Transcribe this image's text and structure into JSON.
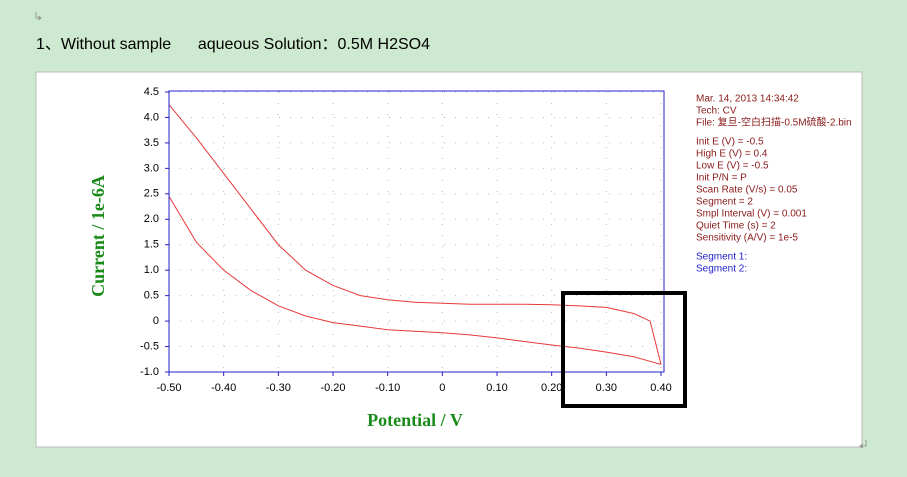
{
  "chart_data": {
    "type": "line",
    "title": "1、Without sample      aqueous Solution：0.5M H2SO4",
    "x_label": "Potential / V",
    "y_label": "Current / 1e-6A",
    "annotations": [
      "Mar. 14, 2013    14:34:42",
      "Tech: CV",
      "File: 复旦-空白扫描-0.5M硫酸-2.bin",
      "Init E (V) = -0.5",
      "High E (V) = 0.4",
      "Low E (V) = -0.5",
      "Init P/N = P",
      "Scan Rate (V/s) = 0.05",
      "Segment = 2",
      "Smpl Interval (V) = 0.001",
      "Quiet Time (s) = 2",
      "Sensitivity (A/V) = 1e-5"
    ],
    "xlim": [
      -0.5,
      0.4
    ],
    "ylim": [
      -1.0,
      4.5
    ],
    "xticks": [
      {
        "value": -0.5,
        "label": "-0.50"
      },
      {
        "value": -0.4,
        "label": "-0.40"
      },
      {
        "value": -0.3,
        "label": "-0.30"
      },
      {
        "value": -0.2,
        "label": "-0.20"
      },
      {
        "value": -0.1,
        "label": "-0.10"
      },
      0,
      {
        "value": 0.1,
        "label": "0.10"
      },
      {
        "value": 0.2,
        "label": "0.20"
      },
      {
        "value": 0.3,
        "label": "0.30"
      },
      {
        "value": 0.4,
        "label": "0.40"
      }
    ],
    "yticks": [
      {
        "value": 4.5,
        "label": "4.5"
      },
      {
        "value": 4.0,
        "label": "4.0"
      },
      {
        "value": 3.5,
        "label": "3.5"
      },
      {
        "value": 3.0,
        "label": "3.0"
      },
      {
        "value": 2.5,
        "label": "2.5"
      },
      {
        "value": 2.0,
        "label": "2.0"
      },
      {
        "value": 1.5,
        "label": "1.5"
      },
      {
        "value": 1.0,
        "label": "1.0"
      },
      {
        "value": 0.5,
        "label": "0.5"
      },
      0,
      {
        "value": -0.5,
        "label": "-0.5"
      },
      {
        "value": -1.0,
        "label": "-1.0"
      }
    ],
    "grid": true,
    "x": [
      -0.5,
      -0.45,
      -0.4,
      -0.35,
      -0.3,
      -0.25,
      -0.2,
      -0.15,
      -0.1,
      -0.05,
      0,
      0.05,
      0.1,
      0.15,
      0.2,
      0.25,
      0.3,
      0.35,
      0.38,
      0.4
    ],
    "series": [
      {
        "name": "Segment 1:",
        "color": "#e8393a",
        "values": [
          4.25,
          3.6,
          2.9,
          2.2,
          1.5,
          1.0,
          0.7,
          0.5,
          0.42,
          0.37,
          0.35,
          0.33,
          0.33,
          0.33,
          0.32,
          0.3,
          0.27,
          0.15,
          0.0,
          -0.85
        ]
      },
      {
        "name": "Segment 2:",
        "color": "#e8393a",
        "values": [
          2.45,
          1.55,
          1.0,
          0.6,
          0.3,
          0.1,
          -0.03,
          -0.1,
          -0.17,
          -0.2,
          -0.23,
          -0.27,
          -0.33,
          -0.4,
          -0.47,
          -0.53,
          -0.61,
          -0.7,
          -0.79,
          -0.85
        ]
      }
    ]
  }
}
